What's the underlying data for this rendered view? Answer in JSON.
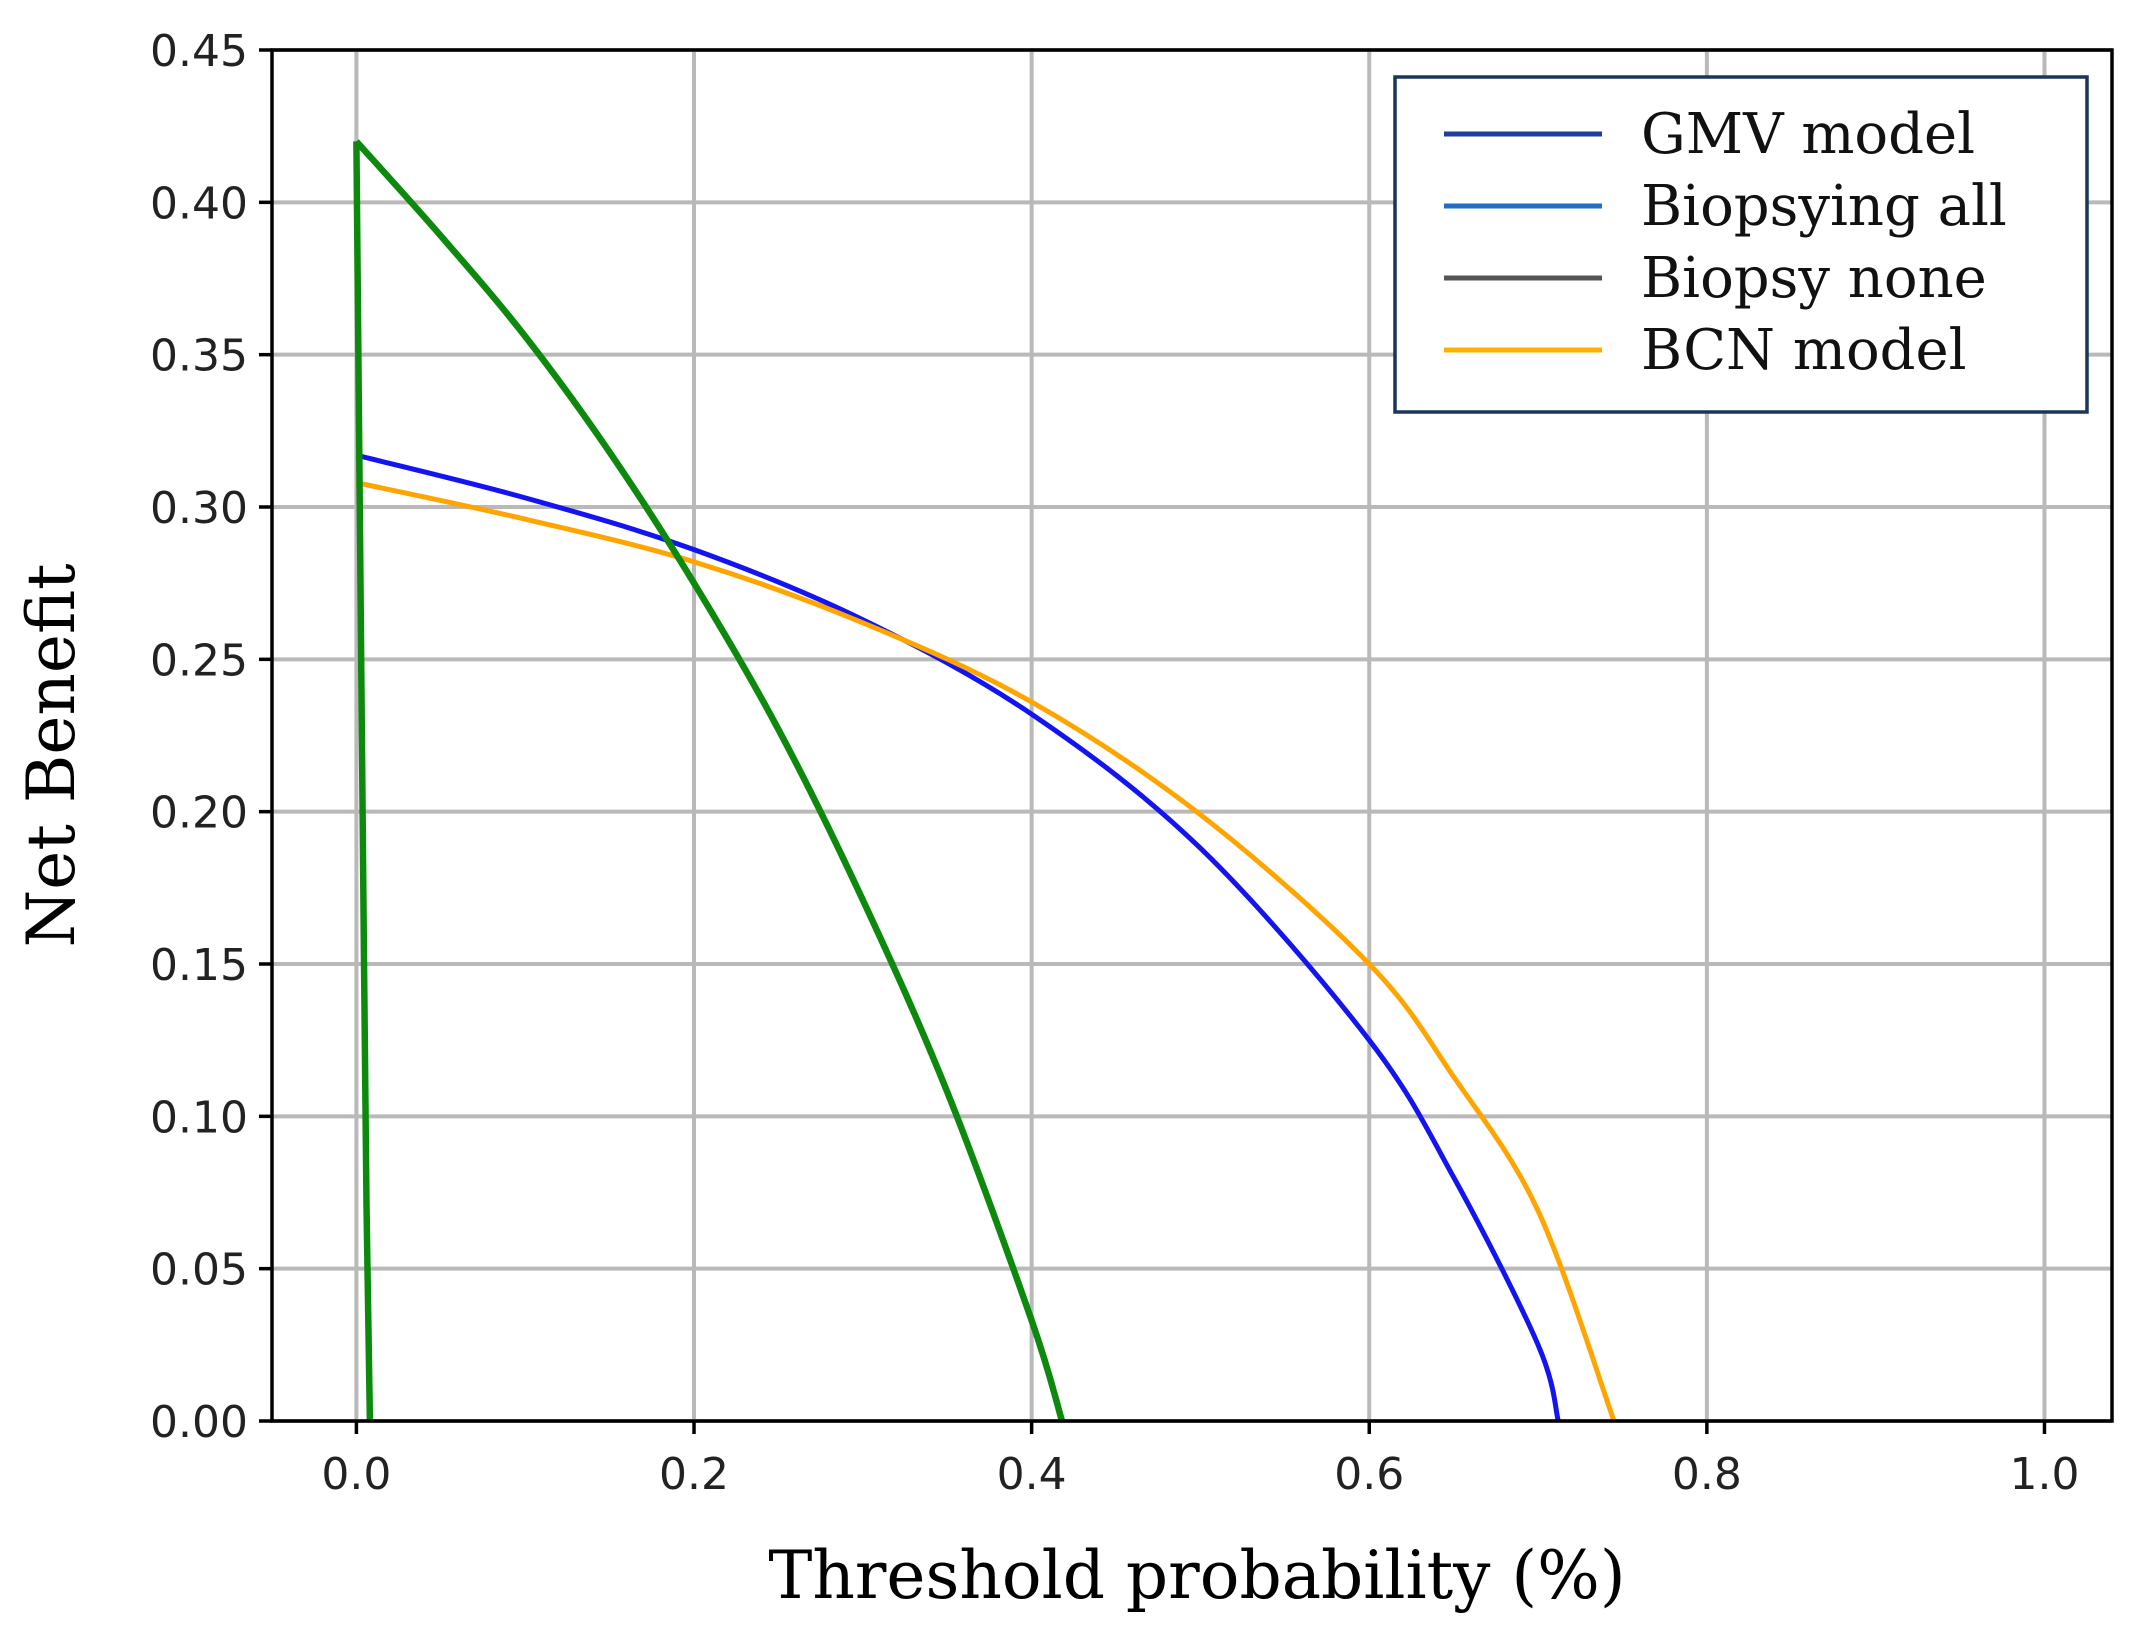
{
  "chart_data": {
    "type": "line",
    "title": "",
    "xlabel": "Threshold probability (%)",
    "ylabel": "Net Benefit",
    "xlim": [
      -0.05,
      1.04
    ],
    "ylim": [
      0.0,
      0.45
    ],
    "grid": true,
    "legend_position": "top-right",
    "xticks": [
      0.0,
      0.2,
      0.4,
      0.6,
      0.8,
      1.0
    ],
    "xtick_labels": [
      "0.0",
      "0.2",
      "0.4",
      "0.6",
      "0.8",
      "1.0"
    ],
    "yticks": [
      0.0,
      0.05,
      0.1,
      0.15,
      0.2,
      0.25,
      0.3,
      0.35,
      0.4,
      0.45
    ],
    "ytick_labels": [
      "0.00",
      "0.05",
      "0.10",
      "0.15",
      "0.20",
      "0.25",
      "0.30",
      "0.35",
      "0.40",
      "0.45"
    ],
    "legend": [
      {
        "label": "GMV model",
        "color": "#1f3f9a"
      },
      {
        "label": "Biopsying all",
        "color": "#1f6fc4"
      },
      {
        "label": "Biopsy none",
        "color": "#555555"
      },
      {
        "label": "BCN model",
        "color": "#ffb000"
      }
    ],
    "series": [
      {
        "name": "GMV model",
        "color": "#1414f0",
        "x": [
          0.0,
          0.1,
          0.2,
          0.3,
          0.4,
          0.5,
          0.6,
          0.65,
          0.7,
          0.712
        ],
        "y": [
          0.317,
          0.303,
          0.286,
          0.263,
          0.232,
          0.188,
          0.125,
          0.08,
          0.025,
          0.0
        ]
      },
      {
        "name": "BCN model",
        "color": "#ffa500",
        "x": [
          0.0,
          0.1,
          0.2,
          0.3,
          0.4,
          0.5,
          0.6,
          0.65,
          0.7,
          0.745
        ],
        "y": [
          0.308,
          0.296,
          0.282,
          0.262,
          0.236,
          0.199,
          0.15,
          0.113,
          0.069,
          0.0
        ]
      },
      {
        "name": "Biopsying all",
        "color": "#0d8a0d",
        "x": [
          0.0,
          0.05,
          0.1,
          0.15,
          0.2,
          0.25,
          0.3,
          0.35,
          0.4,
          0.418
        ],
        "y": [
          0.42,
          0.389,
          0.356,
          0.318,
          0.275,
          0.227,
          0.171,
          0.108,
          0.033,
          0.0
        ]
      },
      {
        "name": "Biopsy none",
        "color": "#0d8a0d",
        "x": [
          0.0,
          0.002,
          0.004,
          0.006,
          0.008
        ],
        "y": [
          0.42,
          0.3,
          0.18,
          0.07,
          0.0
        ]
      }
    ]
  }
}
